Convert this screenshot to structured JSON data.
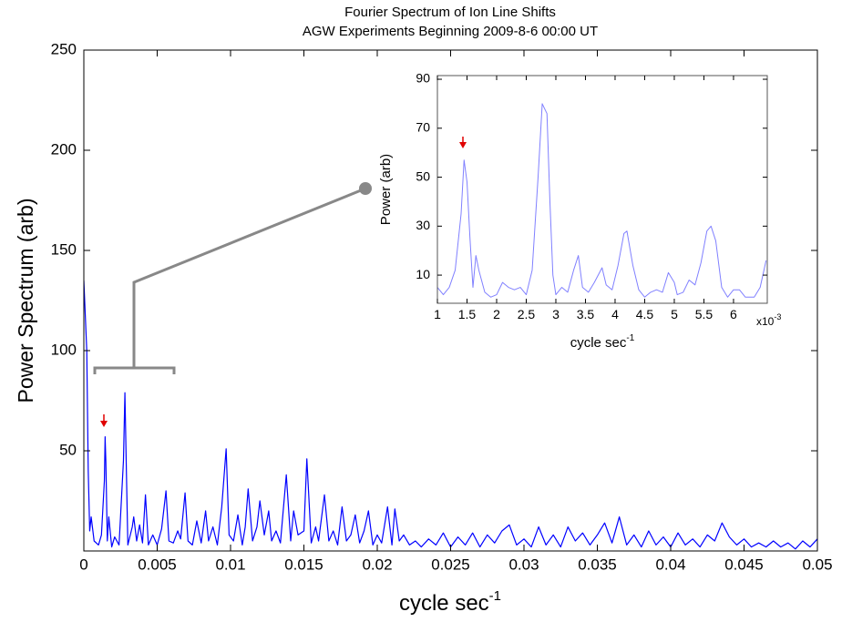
{
  "chart_data": [
    {
      "type": "line",
      "title": "Fourier Spectrum of Ion Line Shifts",
      "subtitle": "AGW Experiments Beginning 2009-8-6    00:00 UT",
      "ylabel": "Power Spectrum (arb)",
      "xlabel": "cycle sec",
      "xlabel_superscript": "-1",
      "xlim": [
        0,
        0.05
      ],
      "ylim": [
        0,
        250
      ],
      "xticks": [
        0,
        0.005,
        0.01,
        0.015,
        0.02,
        0.025,
        0.03,
        0.035,
        0.04,
        0.045,
        0.05
      ],
      "yticks": [
        50,
        100,
        150,
        200,
        250
      ],
      "grid": false,
      "x": [
        0,
        0.0002,
        0.0003,
        0.0004,
        0.0005,
        0.0007,
        0.001,
        0.0012,
        0.0014,
        0.00145,
        0.0015,
        0.0016,
        0.0017,
        0.0019,
        0.0021,
        0.0024,
        0.0027,
        0.0028,
        0.0029,
        0.003,
        0.0033,
        0.0034,
        0.0036,
        0.0038,
        0.004,
        0.0042,
        0.0044,
        0.0047,
        0.005,
        0.0053,
        0.0056,
        0.0058,
        0.0061,
        0.0064,
        0.0066,
        0.0069,
        0.0071,
        0.0074,
        0.0077,
        0.008,
        0.0083,
        0.0085,
        0.0088,
        0.0091,
        0.0094,
        0.0097,
        0.0099,
        0.0102,
        0.0105,
        0.0108,
        0.011,
        0.0112,
        0.0115,
        0.0118,
        0.012,
        0.0123,
        0.0126,
        0.0128,
        0.0131,
        0.0134,
        0.0138,
        0.0141,
        0.0143,
        0.0146,
        0.015,
        0.0152,
        0.0155,
        0.0158,
        0.016,
        0.0164,
        0.0167,
        0.017,
        0.0173,
        0.0176,
        0.0179,
        0.0182,
        0.0185,
        0.0188,
        0.0191,
        0.0194,
        0.0197,
        0.02,
        0.0203,
        0.0207,
        0.021,
        0.0212,
        0.0215,
        0.0218,
        0.0222,
        0.0226,
        0.023,
        0.0235,
        0.024,
        0.0245,
        0.025,
        0.0255,
        0.026,
        0.0265,
        0.027,
        0.0275,
        0.028,
        0.0285,
        0.029,
        0.0295,
        0.03,
        0.0305,
        0.031,
        0.0315,
        0.032,
        0.0325,
        0.033,
        0.0335,
        0.034,
        0.0345,
        0.035,
        0.0355,
        0.036,
        0.0365,
        0.037,
        0.0375,
        0.038,
        0.0385,
        0.039,
        0.0395,
        0.04,
        0.0405,
        0.041,
        0.0415,
        0.042,
        0.0425,
        0.043,
        0.0435,
        0.044,
        0.0445,
        0.045,
        0.0455,
        0.046,
        0.0465,
        0.047,
        0.0475,
        0.048,
        0.0485,
        0.049,
        0.0495,
        0.05
      ],
      "series": [
        {
          "color": "#0000ff",
          "values": [
            135,
            100,
            40,
            10,
            17,
            5,
            3,
            8,
            35,
            57,
            45,
            5,
            17,
            2,
            7,
            3,
            45,
            79,
            40,
            3,
            12,
            17,
            5,
            13,
            4,
            28,
            3,
            8,
            3,
            11,
            30,
            5,
            4,
            10,
            6,
            29,
            5,
            3,
            15,
            4,
            20,
            5,
            12,
            3,
            22,
            51,
            8,
            5,
            18,
            3,
            12,
            31,
            5,
            12,
            25,
            8,
            20,
            5,
            10,
            4,
            38,
            5,
            20,
            8,
            10,
            46,
            4,
            12,
            5,
            28,
            5,
            10,
            3,
            22,
            5,
            8,
            18,
            4,
            10,
            20,
            3,
            8,
            4,
            22,
            3,
            21,
            5,
            8,
            3,
            5,
            2,
            6,
            3,
            9,
            2,
            7,
            3,
            9,
            2,
            8,
            4,
            10,
            13,
            3,
            6,
            2,
            12,
            3,
            8,
            2,
            12,
            5,
            9,
            3,
            8,
            14,
            4,
            17,
            3,
            8,
            2,
            10,
            3,
            7,
            2,
            9,
            3,
            6,
            2,
            8,
            5,
            14,
            7,
            3,
            6,
            2,
            4,
            2,
            5,
            2,
            4,
            1,
            5,
            2,
            6
          ]
        }
      ]
    },
    {
      "type": "line",
      "ylabel": "Power (arb)",
      "xlabel": "cycle sec",
      "xlabel_superscript": "-1",
      "x_multiplier": "x10",
      "x_multiplier_exponent": "-3",
      "xlim": [
        1,
        6.57
      ],
      "ylim": [
        -1.5,
        91.5
      ],
      "xticks": [
        1,
        1.5,
        2,
        2.5,
        3,
        3.5,
        4,
        4.5,
        5,
        5.5,
        6
      ],
      "yticks": [
        10,
        30,
        50,
        70,
        90
      ],
      "grid": false,
      "x": [
        1,
        1.1,
        1.2,
        1.3,
        1.4,
        1.45,
        1.5,
        1.55,
        1.6,
        1.65,
        1.7,
        1.8,
        1.9,
        2,
        2.1,
        2.2,
        2.3,
        2.4,
        2.5,
        2.6,
        2.7,
        2.77,
        2.85,
        2.9,
        2.95,
        3,
        3.1,
        3.2,
        3.3,
        3.38,
        3.45,
        3.55,
        3.65,
        3.78,
        3.85,
        3.95,
        4.05,
        4.15,
        4.2,
        4.3,
        4.4,
        4.5,
        4.6,
        4.7,
        4.8,
        4.9,
        5,
        5.05,
        5.15,
        5.25,
        5.35,
        5.45,
        5.55,
        5.62,
        5.7,
        5.8,
        5.9,
        6,
        6.1,
        6.2,
        6.35,
        6.45,
        6.55
      ],
      "series": [
        {
          "color": "#8080ff",
          "values": [
            5,
            2,
            5,
            12,
            35,
            57,
            48,
            25,
            5,
            18,
            12,
            3,
            1,
            2,
            7,
            5,
            4,
            5,
            2,
            12,
            50,
            80,
            76,
            40,
            10,
            2,
            5,
            3,
            12,
            18,
            5,
            3,
            7,
            13,
            6,
            4,
            14,
            27,
            28,
            14,
            4,
            1,
            3,
            4,
            3,
            11,
            7,
            2,
            3,
            8,
            6,
            15,
            28,
            30,
            24,
            5,
            1,
            4,
            4,
            1,
            1,
            5,
            16
          ]
        }
      ]
    }
  ]
}
